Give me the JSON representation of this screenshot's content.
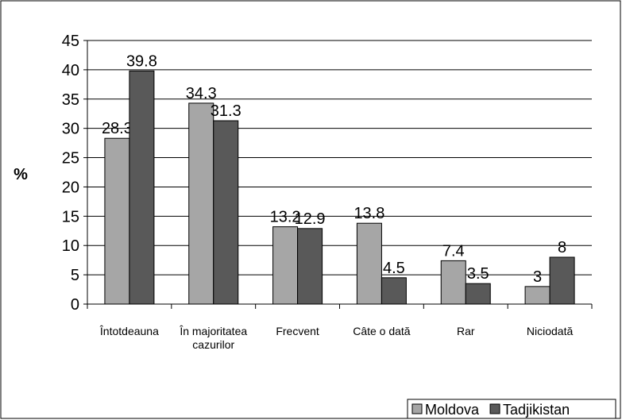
{
  "chart_data": {
    "type": "bar",
    "y_label": "%",
    "categories": [
      "Întotdeauna",
      "În majoritatea cazurilor",
      "Frecvent",
      "Câte o dată",
      "Rar",
      "Niciodată"
    ],
    "series": [
      {
        "name": "Moldova",
        "color": "#a6a6a6",
        "values": [
          28.3,
          34.3,
          13.2,
          13.8,
          7.4,
          3
        ]
      },
      {
        "name": "Tadjikistan",
        "color": "#595959",
        "values": [
          39.8,
          31.3,
          12.9,
          4.5,
          3.5,
          8
        ]
      }
    ],
    "ylim": [
      0,
      45
    ],
    "yticks": [
      0,
      5,
      10,
      15,
      20,
      25,
      30,
      35,
      40,
      45
    ],
    "grid": true,
    "legend": "bottom-right"
  }
}
